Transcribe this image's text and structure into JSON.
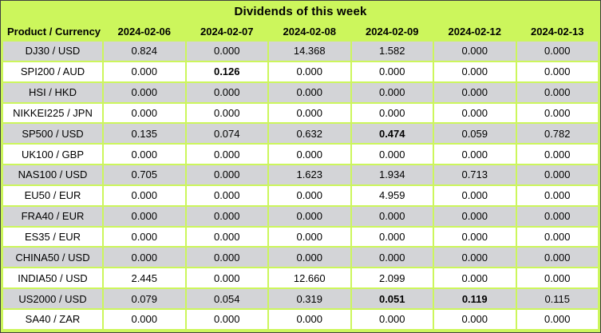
{
  "title": "Dividends of this week",
  "chart_data": {
    "type": "table",
    "title": "Dividends of this week",
    "columns": [
      "Product / Currency",
      "2024-02-06",
      "2024-02-07",
      "2024-02-08",
      "2024-02-09",
      "2024-02-12",
      "2024-02-13"
    ],
    "rows": [
      {
        "product": "DJ30 / USD",
        "values": [
          "0.824",
          "0.000",
          "14.368",
          "1.582",
          "0.000",
          "0.000"
        ],
        "bold": []
      },
      {
        "product": "SPI200 / AUD",
        "values": [
          "0.000",
          "0.126",
          "0.000",
          "0.000",
          "0.000",
          "0.000"
        ],
        "bold": [
          1
        ]
      },
      {
        "product": "HSI / HKD",
        "values": [
          "0.000",
          "0.000",
          "0.000",
          "0.000",
          "0.000",
          "0.000"
        ],
        "bold": []
      },
      {
        "product": "NIKKEI225 / JPN",
        "values": [
          "0.000",
          "0.000",
          "0.000",
          "0.000",
          "0.000",
          "0.000"
        ],
        "bold": []
      },
      {
        "product": "SP500 / USD",
        "values": [
          "0.135",
          "0.074",
          "0.632",
          "0.474",
          "0.059",
          "0.782"
        ],
        "bold": [
          3
        ]
      },
      {
        "product": "UK100 / GBP",
        "values": [
          "0.000",
          "0.000",
          "0.000",
          "0.000",
          "0.000",
          "0.000"
        ],
        "bold": []
      },
      {
        "product": "NAS100 / USD",
        "values": [
          "0.705",
          "0.000",
          "1.623",
          "1.934",
          "0.713",
          "0.000"
        ],
        "bold": []
      },
      {
        "product": "EU50 / EUR",
        "values": [
          "0.000",
          "0.000",
          "0.000",
          "4.959",
          "0.000",
          "0.000"
        ],
        "bold": []
      },
      {
        "product": "FRA40 / EUR",
        "values": [
          "0.000",
          "0.000",
          "0.000",
          "0.000",
          "0.000",
          "0.000"
        ],
        "bold": []
      },
      {
        "product": "ES35 / EUR",
        "values": [
          "0.000",
          "0.000",
          "0.000",
          "0.000",
          "0.000",
          "0.000"
        ],
        "bold": []
      },
      {
        "product": "CHINA50 / USD",
        "values": [
          "0.000",
          "0.000",
          "0.000",
          "0.000",
          "0.000",
          "0.000"
        ],
        "bold": []
      },
      {
        "product": "INDIA50 / USD",
        "values": [
          "2.445",
          "0.000",
          "12.660",
          "2.099",
          "0.000",
          "0.000"
        ],
        "bold": []
      },
      {
        "product": "US2000 / USD",
        "values": [
          "0.079",
          "0.054",
          "0.319",
          "0.051",
          "0.119",
          "0.115"
        ],
        "bold": [
          3,
          4
        ]
      },
      {
        "product": "SA40 / ZAR",
        "values": [
          "0.000",
          "0.000",
          "0.000",
          "0.000",
          "0.000",
          "0.000"
        ],
        "bold": []
      }
    ],
    "layout": {
      "grid": "green gaps between cells",
      "row_striping": "odd rows gray, even rows white",
      "legend_position": "none"
    }
  },
  "colors": {
    "background_green": "#ccf65c",
    "row_gray": "#d3d4d7",
    "row_white": "#ffffff",
    "outer_border": "#404040",
    "text": "#000000"
  }
}
